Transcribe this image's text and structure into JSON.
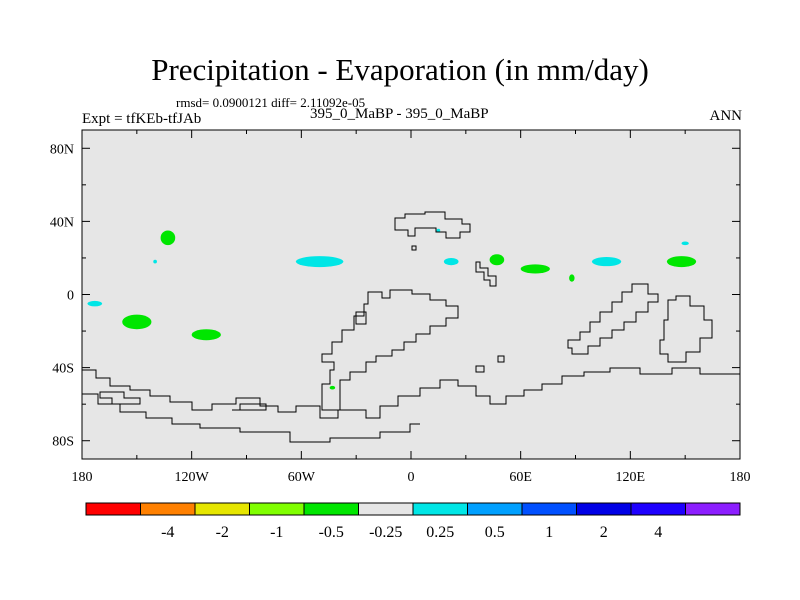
{
  "title": "Precipitation - Evaporation (in mm/day)",
  "stats": "rmsd= 0.0900121 diff= 2.11092e-05",
  "left_label": "Expt = tfKEb-tfJAb",
  "center_label": "395_0_MaBP - 395_0_MaBP",
  "right_label": "ANN",
  "chart_data": {
    "type": "heatmap",
    "title": "Precipitation - Evaporation (in mm/day)",
    "xlim": [
      -180,
      180
    ],
    "ylim": [
      -90,
      90
    ],
    "x_ticks": [
      {
        "value": -180,
        "label": "180"
      },
      {
        "value": -120,
        "label": "120W"
      },
      {
        "value": -60,
        "label": "60W"
      },
      {
        "value": 0,
        "label": "0"
      },
      {
        "value": 60,
        "label": "60E"
      },
      {
        "value": 120,
        "label": "120E"
      },
      {
        "value": 180,
        "label": "180"
      }
    ],
    "y_ticks": [
      {
        "value": 80,
        "label": "80N"
      },
      {
        "value": 40,
        "label": "40N"
      },
      {
        "value": 0,
        "label": "0"
      },
      {
        "value": -40,
        "label": "40S"
      },
      {
        "value": -80,
        "label": "80S"
      }
    ],
    "background_color": "#e6e6e6",
    "colorbar": {
      "colors": [
        "#ff0000",
        "#ff8000",
        "#e6e600",
        "#80ff00",
        "#00e600",
        "#e6e6e6",
        "#00e6e6",
        "#00a0ff",
        "#0050ff",
        "#0000e6",
        "#1e00ff",
        "#8c1eff"
      ],
      "labels": [
        "-4",
        "-2",
        "-1",
        "-0.5",
        "-0.25",
        "0.25",
        "0.5",
        "1",
        "2",
        "4"
      ]
    },
    "regions": [
      {
        "level": "-0.25",
        "color": "#00e600",
        "lon": -133,
        "lat": 31,
        "rlon": 4,
        "rlat": 4
      },
      {
        "level": "-0.25",
        "color": "#00e600",
        "lon": -150,
        "lat": -15,
        "rlon": 8,
        "rlat": 4
      },
      {
        "level": "-0.25",
        "color": "#00e600",
        "lon": -112,
        "lat": -22,
        "rlon": 8,
        "rlat": 3
      },
      {
        "level": "-0.25",
        "color": "#00e600",
        "lon": 47,
        "lat": 19,
        "rlon": 4,
        "rlat": 3
      },
      {
        "level": "-0.25",
        "color": "#00e600",
        "lon": 68,
        "lat": 14,
        "rlon": 8,
        "rlat": 2.5
      },
      {
        "level": "-0.25",
        "color": "#00e600",
        "lon": 148,
        "lat": 18,
        "rlon": 8,
        "rlat": 3
      },
      {
        "level": "-0.25",
        "color": "#00e600",
        "lon": 88,
        "lat": 9,
        "rlon": 1.5,
        "rlat": 2
      },
      {
        "level": "-0.25",
        "color": "#00e600",
        "lon": -43,
        "lat": -51,
        "rlon": 1.5,
        "rlat": 1
      },
      {
        "level": "0.25",
        "color": "#00e6e6",
        "lon": -50,
        "lat": 18,
        "rlon": 13,
        "rlat": 3
      },
      {
        "level": "0.25",
        "color": "#00e6e6",
        "lon": 107,
        "lat": 18,
        "rlon": 8,
        "rlat": 2.5
      },
      {
        "level": "0.25",
        "color": "#00e6e6",
        "lon": 22,
        "lat": 18,
        "rlon": 4,
        "rlat": 2
      },
      {
        "level": "0.25",
        "color": "#00e6e6",
        "lon": -173,
        "lat": -5,
        "rlon": 4,
        "rlat": 1.5
      },
      {
        "level": "0.25",
        "color": "#00e6e6",
        "lon": -140,
        "lat": 18,
        "rlon": 1,
        "rlat": 1
      },
      {
        "level": "0.25",
        "color": "#00e6e6",
        "lon": 15,
        "lat": 35,
        "rlon": 1,
        "rlat": 1
      },
      {
        "level": "0.25",
        "color": "#00e6e6",
        "lon": 150,
        "lat": 28,
        "rlon": 2,
        "rlat": 1
      }
    ]
  }
}
